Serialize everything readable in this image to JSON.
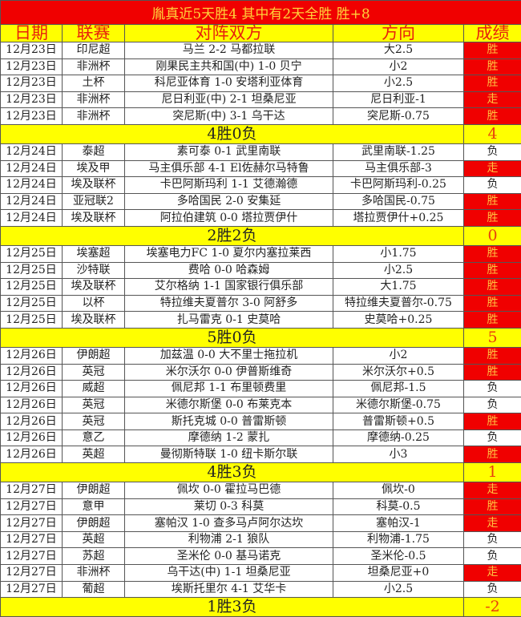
{
  "title": "胤真近5天胜4  其中有2天全胜  胜+8",
  "headers": [
    "日期",
    "联赛",
    "对阵双方",
    "方向",
    "成绩"
  ],
  "colors": {
    "win_bg": "#f00000",
    "win_text": "#ffc040",
    "summary_bg": "#ffff00",
    "header_text": "#e8200c"
  },
  "days": [
    {
      "rows": [
        [
          "12月23日",
          "印尼超",
          "马兰 2-2 马都拉联",
          "大2.5",
          "胜"
        ],
        [
          "12月23日",
          "非洲杯",
          "刚果民主共和国(中) 1-0 贝宁",
          "小2",
          "胜"
        ],
        [
          "12月23日",
          "土杯",
          "科尼亚体育 1-0 安塔利亚体育",
          "小2.5",
          "胜"
        ],
        [
          "12月23日",
          "非洲杯",
          "尼日利亚(中) 2-1 坦桑尼亚",
          "尼日利亚-1",
          "走"
        ],
        [
          "12月23日",
          "非洲杯",
          "突尼斯(中) 3-1 乌干达",
          "突尼斯-0.75",
          "胜"
        ]
      ],
      "summary": "4胜0负",
      "score": "4"
    },
    {
      "rows": [
        [
          "12月24日",
          "泰超",
          "素可泰 0-1 武里南联",
          "武里南联-1.25",
          "负"
        ],
        [
          "12月24日",
          "埃及甲",
          "马主俱乐部 4-1 El佐赫尔马特鲁",
          "马主俱乐部-3",
          "走"
        ],
        [
          "12月24日",
          "埃及联杯",
          "卡巴阿斯玛利 1-1 艾德瀚德",
          "卡巴阿斯玛利-0.25",
          "负"
        ],
        [
          "12月24日",
          "亚冠联2",
          "多哈国民 2-0 安集延",
          "多哈国民-0.75",
          "胜"
        ],
        [
          "12月24日",
          "埃及联杯",
          "阿拉伯建筑 0-0 塔拉贾伊什",
          "塔拉贾伊什+0.25",
          "胜"
        ]
      ],
      "summary": "2胜2负",
      "score": "0"
    },
    {
      "rows": [
        [
          "12月25日",
          "埃塞超",
          "埃塞电力FC 1-0 夏尔内塞拉莱西",
          "小1.75",
          "胜"
        ],
        [
          "12月25日",
          "沙特联",
          "费哈 0-0 哈森姆",
          "小2.5",
          "胜"
        ],
        [
          "12月25日",
          "埃及联杯",
          "艾尔格纳 1-1 国家银行俱乐部",
          "大1.75",
          "胜"
        ],
        [
          "12月25日",
          "以杯",
          "特拉维夫夏普尔 3-0 阿舒多",
          "特拉维夫夏普尔-0.75",
          "胜"
        ],
        [
          "12月25日",
          "埃及联杯",
          "扎马雷克 0-1 史莫哈",
          "史莫哈+0.25",
          "胜"
        ]
      ],
      "summary": "5胜0负",
      "score": "5"
    },
    {
      "rows": [
        [
          "12月26日",
          "伊朗超",
          "加兹温 0-0 大不里士拖拉机",
          "小2",
          "胜"
        ],
        [
          "12月26日",
          "英冠",
          "米尔沃尔 0-0 伊普斯维奇",
          "米尔沃尔+0.5",
          "胜"
        ],
        [
          "12月26日",
          "威超",
          "佩尼邦 1-1 布里顿费里",
          "佩尼邦-1.5",
          "负"
        ],
        [
          "12月26日",
          "英冠",
          "米德尔斯堡 0-0 布莱克本",
          "米德尔斯堡-0.75",
          "负"
        ],
        [
          "12月26日",
          "英冠",
          "斯托克城 0-0 普雷斯顿",
          "普雷斯顿+0.5",
          "胜"
        ],
        [
          "12月26日",
          "意乙",
          "摩德纳 1-2 蒙扎",
          "摩德纳-0.25",
          "负"
        ],
        [
          "12月26日",
          "英超",
          "曼彻斯特联 1-0 纽卡斯尔联",
          "小3",
          "胜"
        ]
      ],
      "summary": "4胜3负",
      "score": "1"
    },
    {
      "rows": [
        [
          "12月27日",
          "伊朗超",
          "佩坎 0-0 霍拉马巴德",
          "佩坎-0",
          "走"
        ],
        [
          "12月27日",
          "意甲",
          "莱切 0-3 科莫",
          "科莫-0.5",
          "胜"
        ],
        [
          "12月27日",
          "伊朗超",
          "塞帕汉 1-0 查多马卢阿尔达坎",
          "塞帕汉-1",
          "走"
        ],
        [
          "12月27日",
          "英超",
          "利物浦 2-1 狼队",
          "利物浦-1.75",
          "负"
        ],
        [
          "12月27日",
          "苏超",
          "圣米伦 0-0 基马诺克",
          "圣米伦-0.5",
          "负"
        ],
        [
          "12月27日",
          "非洲杯",
          "乌干达(中) 1-1 坦桑尼亚",
          "坦桑尼亚+0",
          "走"
        ],
        [
          "12月27日",
          "葡超",
          "埃斯托里尔 4-1 艾华卡",
          "小2.5",
          "负"
        ]
      ],
      "summary": "1胜3负",
      "score": "-2"
    }
  ]
}
